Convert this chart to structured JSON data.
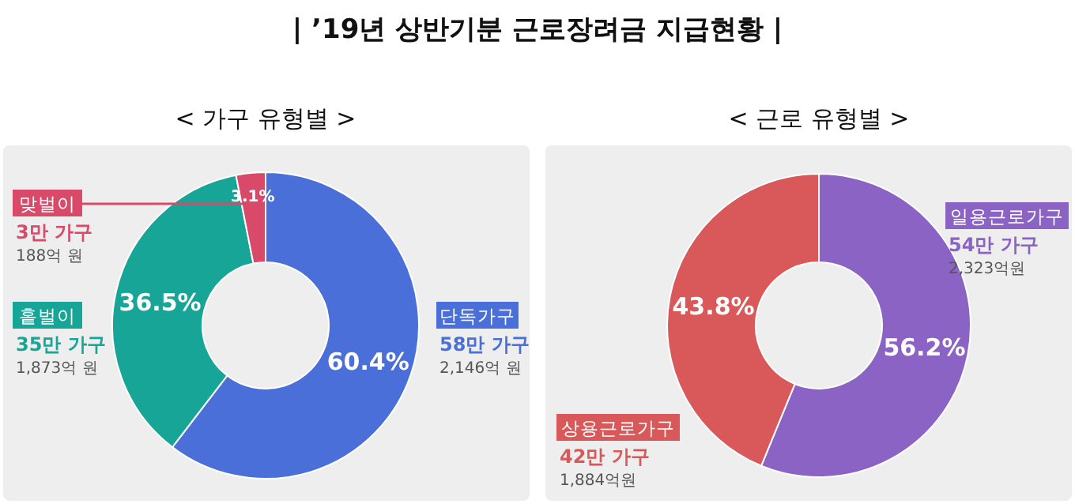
{
  "chart_data": [
    {
      "type": "donut",
      "title": "| ’19년 상반기분 근로장려금 지급현황 |",
      "subtitle": "< 가구 유형별 >",
      "categories": [
        "단독가구",
        "홑벌이",
        "맞벌이"
      ],
      "values": [
        60.4,
        36.5,
        3.1
      ],
      "colors": [
        "#4a6fd8",
        "#17a597",
        "#d94a6a"
      ],
      "value_labels": [
        "60.4%",
        "36.5%",
        "3.1%"
      ],
      "annotations": [
        "58만 가구",
        "2,146억 원",
        "35만 가구",
        "1,873억 원",
        "3만 가구",
        "188억 원"
      ]
    },
    {
      "type": "donut",
      "title": "< 근로 유형별 >",
      "categories": [
        "일용근로가구",
        "상용근로가구"
      ],
      "values": [
        56.2,
        43.8
      ],
      "colors": [
        "#8a63c4",
        "#d9595a"
      ],
      "value_labels": [
        "56.2%",
        "43.8%"
      ],
      "annotations": [
        "54만 가구",
        "2,323억원",
        "42만 가구",
        "1,884억원"
      ]
    }
  ]
}
